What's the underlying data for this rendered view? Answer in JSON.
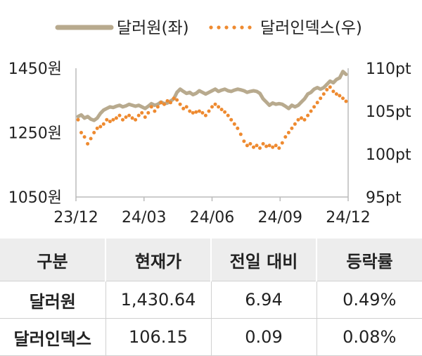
{
  "chart_data": {
    "type": "line",
    "x_ticks": [
      "23/12",
      "24/03",
      "24/06",
      "24/09",
      "24/12"
    ],
    "left_ticks": [
      "1450원",
      "1250원",
      "1050원"
    ],
    "right_ticks": [
      "110pt",
      "105pt",
      "100pt",
      "95pt"
    ],
    "left_ylim": [
      1050,
      1450
    ],
    "right_ylim": [
      95,
      110
    ],
    "legend_position": "top",
    "series": [
      {
        "name": "달러원(좌)",
        "axis": "left",
        "style": "solid",
        "color": "#b8aa8e",
        "values": [
          1300,
          1305,
          1295,
          1300,
          1292,
          1288,
          1295,
          1310,
          1320,
          1325,
          1330,
          1328,
          1332,
          1335,
          1330,
          1333,
          1338,
          1335,
          1332,
          1335,
          1330,
          1325,
          1332,
          1340,
          1335,
          1338,
          1345,
          1340,
          1342,
          1348,
          1355,
          1375,
          1385,
          1378,
          1372,
          1375,
          1368,
          1372,
          1380,
          1375,
          1370,
          1375,
          1380,
          1385,
          1378,
          1382,
          1385,
          1380,
          1378,
          1382,
          1385,
          1383,
          1380,
          1375,
          1378,
          1380,
          1378,
          1372,
          1355,
          1345,
          1335,
          1342,
          1338,
          1340,
          1338,
          1332,
          1325,
          1335,
          1330,
          1335,
          1345,
          1355,
          1370,
          1375,
          1385,
          1390,
          1385,
          1390,
          1400,
          1410,
          1405,
          1415,
          1420,
          1440,
          1431
        ]
      },
      {
        "name": "달러인덱스(우)",
        "axis": "right",
        "style": "dotted",
        "color": "#ee8a30",
        "values": [
          104.0,
          102.5,
          102.0,
          101.2,
          101.8,
          102.5,
          103.0,
          103.2,
          103.5,
          104.0,
          103.8,
          104.0,
          104.2,
          104.5,
          104.0,
          104.3,
          104.5,
          104.2,
          104.0,
          104.5,
          104.8,
          104.3,
          104.8,
          105.5,
          105.0,
          105.5,
          106.0,
          105.8,
          106.2,
          106.0,
          106.5,
          106.3,
          105.8,
          105.3,
          105.5,
          105.0,
          104.8,
          104.9,
          105.0,
          104.8,
          104.5,
          105.0,
          105.5,
          105.8,
          105.5,
          105.2,
          104.9,
          104.5,
          104.0,
          103.5,
          103.0,
          102.3,
          101.5,
          101.0,
          101.2,
          100.8,
          101.0,
          100.7,
          101.2,
          100.9,
          101.0,
          100.8,
          101.0,
          100.7,
          101.3,
          102.0,
          102.5,
          103.0,
          103.5,
          104.0,
          104.2,
          104.0,
          104.5,
          105.0,
          105.5,
          106.0,
          106.5,
          107.0,
          107.5,
          107.8,
          107.3,
          107.0,
          106.8,
          106.5,
          106.15
        ]
      }
    ]
  },
  "table": {
    "headers": [
      "구분",
      "현재가",
      "전일 대비",
      "등락률"
    ],
    "rows": [
      [
        "달러원",
        "1,430.64",
        "6.94",
        "0.49%"
      ],
      [
        "달러인덱스",
        "106.15",
        "0.09",
        "0.08%"
      ]
    ]
  }
}
